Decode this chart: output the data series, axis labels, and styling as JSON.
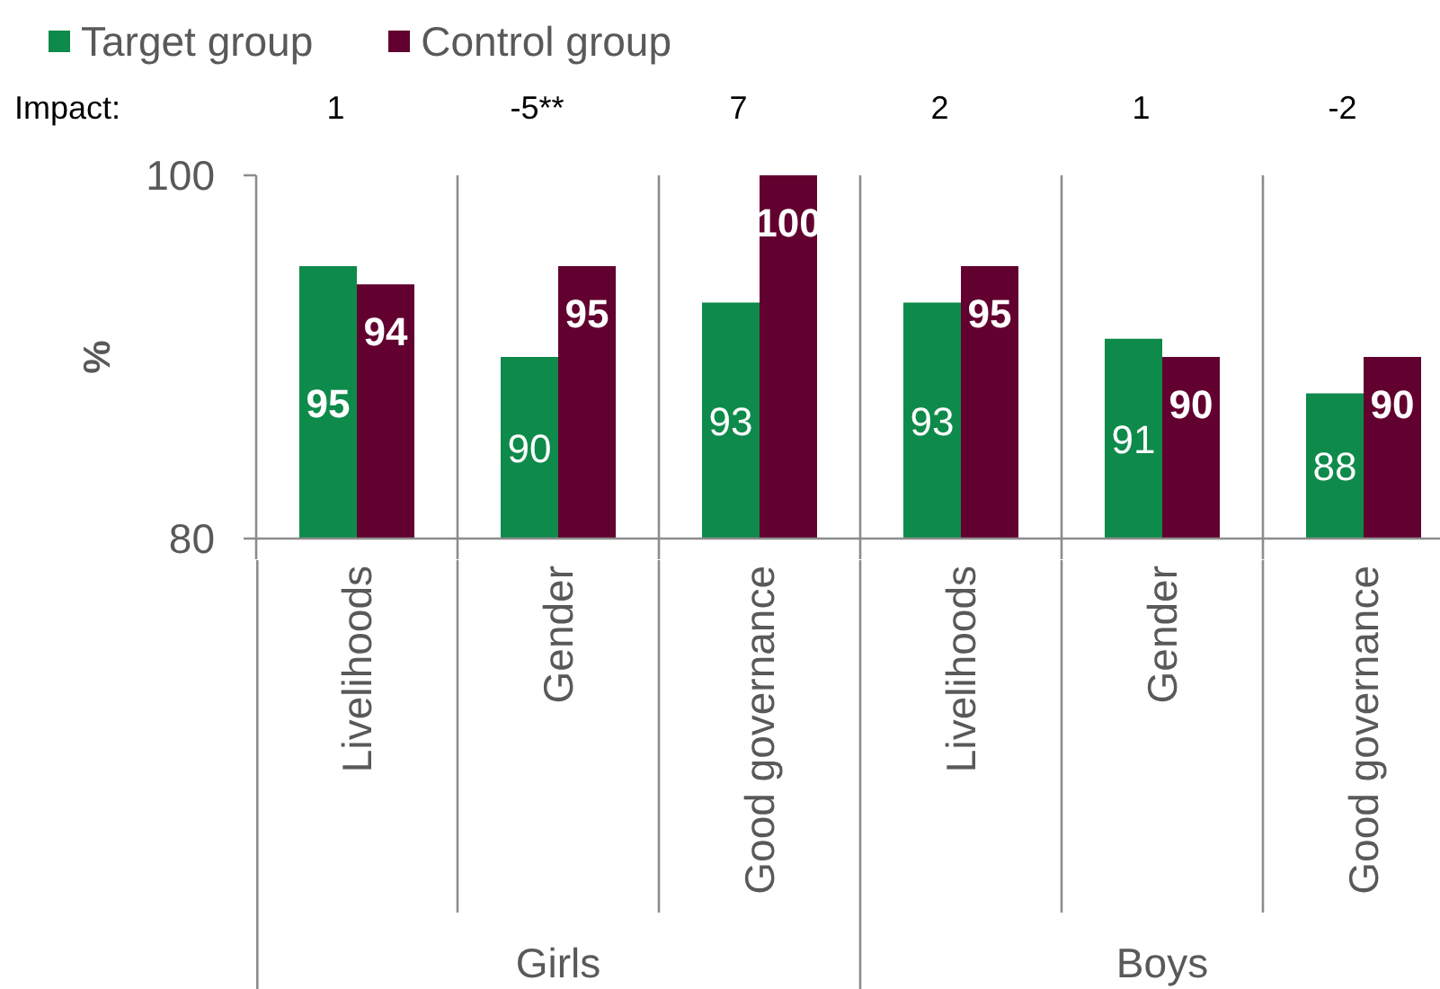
{
  "chart_data": {
    "type": "bar",
    "categories": [
      "Livelihoods",
      "Gender",
      "Good governance",
      "Livelihoods",
      "Gender",
      "Good governance"
    ],
    "series": [
      {
        "name": "Target group",
        "color": "#0e8a4b",
        "values": [
          95,
          90,
          93,
          93,
          91,
          88
        ]
      },
      {
        "name": "Control group",
        "color": "#62002f",
        "values": [
          94,
          95,
          100,
          95,
          90,
          90
        ]
      }
    ],
    "ylabel": "%",
    "ylim": [
      80,
      100
    ],
    "yticks": [
      80,
      100
    ],
    "grid": true,
    "legend": "top left",
    "data_labels": true,
    "annotations": [
      "Impact:",
      "1",
      "-5**",
      "7",
      "2",
      "1",
      "-2",
      "Girls",
      "Boys"
    ]
  }
}
